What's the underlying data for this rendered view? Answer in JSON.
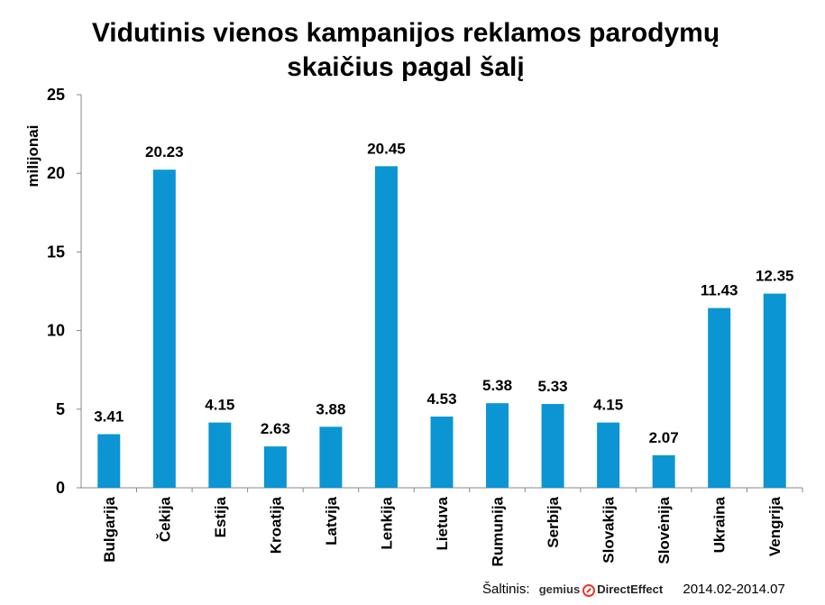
{
  "chart_data": {
    "type": "bar",
    "title_lines": [
      "Vidutinis vienos kampanijos reklamos parodymų",
      "skaičius pagal šalį"
    ],
    "ylabel": "milijonai",
    "xlabel": "",
    "ylim": [
      0,
      25
    ],
    "yticks": [
      0,
      5,
      10,
      15,
      20,
      25
    ],
    "grid": false,
    "bar_color": "#0b95d3",
    "categories": [
      "Bulgarija",
      "Čekija",
      "Estija",
      "Kroatija",
      "Latvija",
      "Lenkija",
      "Lietuva",
      "Rumunija",
      "Serbija",
      "Slovakija",
      "Slovėnija",
      "Ukraina",
      "Vengrija"
    ],
    "values": [
      3.41,
      20.23,
      4.15,
      2.63,
      3.88,
      20.45,
      4.53,
      5.38,
      5.33,
      4.15,
      2.07,
      11.43,
      12.35
    ],
    "value_labels": [
      "3.41",
      "20.23",
      "4.15",
      "2.63",
      "3.88",
      "20.45",
      "4.53",
      "5.38",
      "5.33",
      "4.15",
      "2.07",
      "11.43",
      "12.35"
    ]
  },
  "source": {
    "label": "Šaltinis:",
    "logo_left": "gemius",
    "logo_right": "DirectEffect",
    "logo_icon": "gemius-logo-icon",
    "period": "2014.02-2014.07"
  }
}
